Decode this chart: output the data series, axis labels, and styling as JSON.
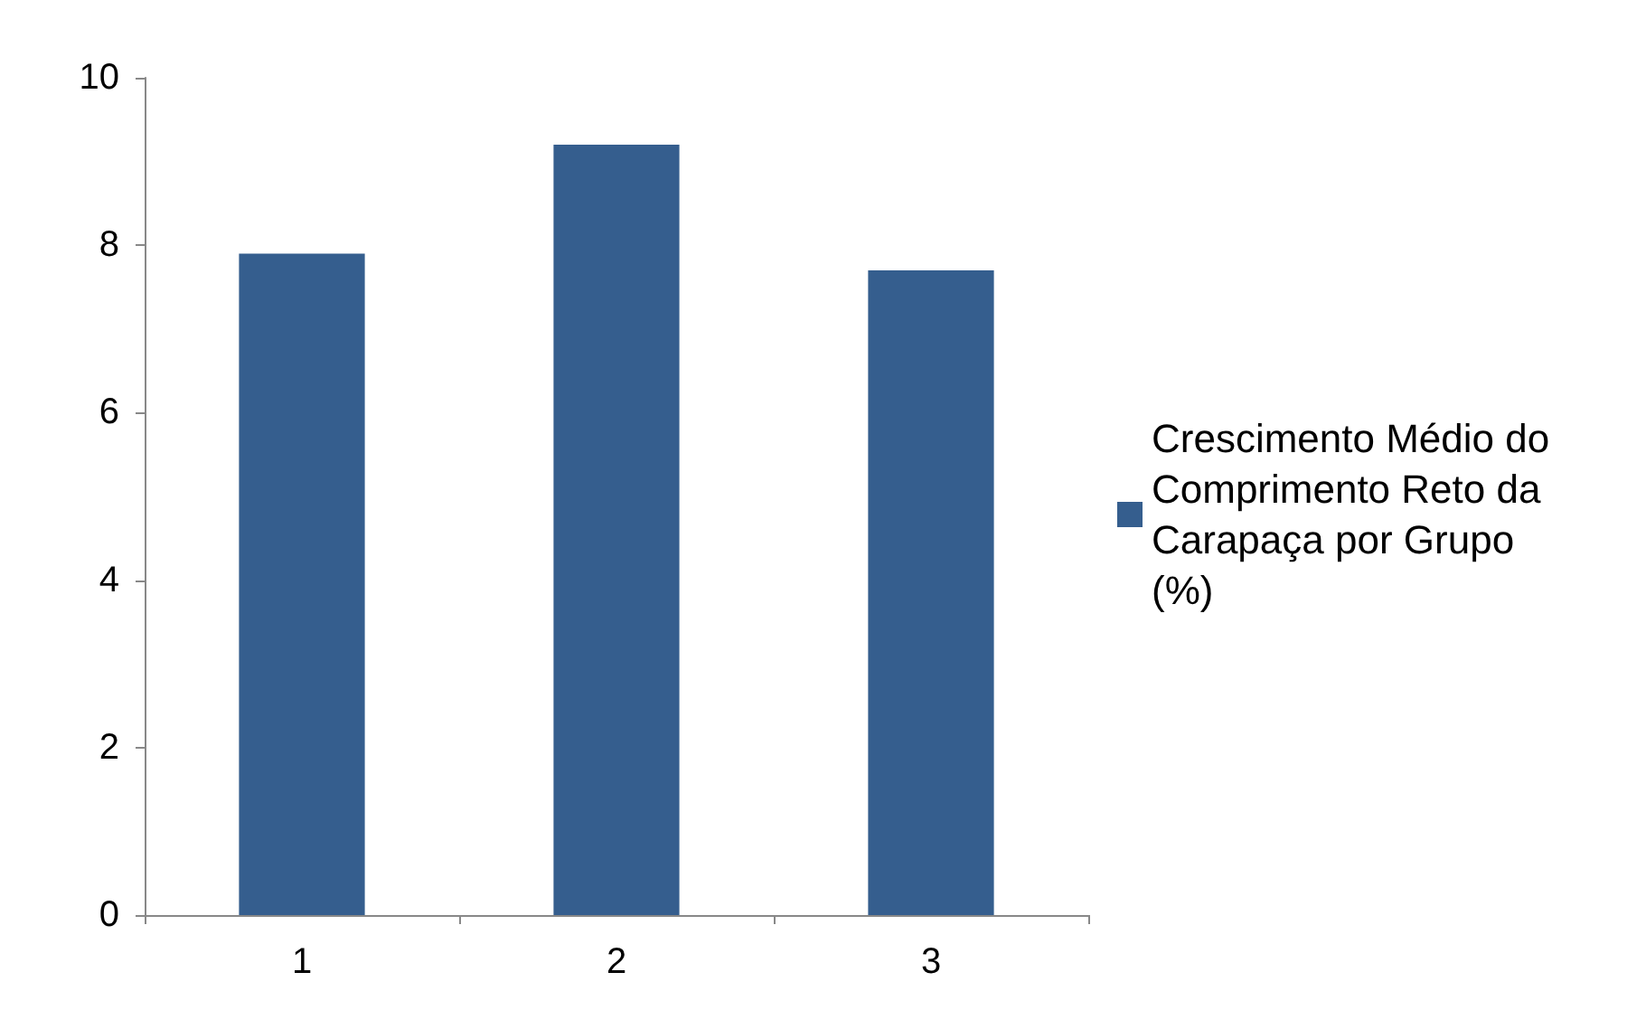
{
  "chart_data": {
    "type": "bar",
    "categories": [
      "1",
      "2",
      "3"
    ],
    "series": [
      {
        "name": "Crescimento Médio do Comprimento Reto da Carapaça por Grupo (%)",
        "color": "#355e8e",
        "values": [
          7.9,
          9.2,
          7.7
        ]
      }
    ],
    "ylim": [
      0,
      10
    ],
    "yticks": [
      0,
      2,
      4,
      6,
      8,
      10
    ],
    "grid": false,
    "legend": "right"
  }
}
